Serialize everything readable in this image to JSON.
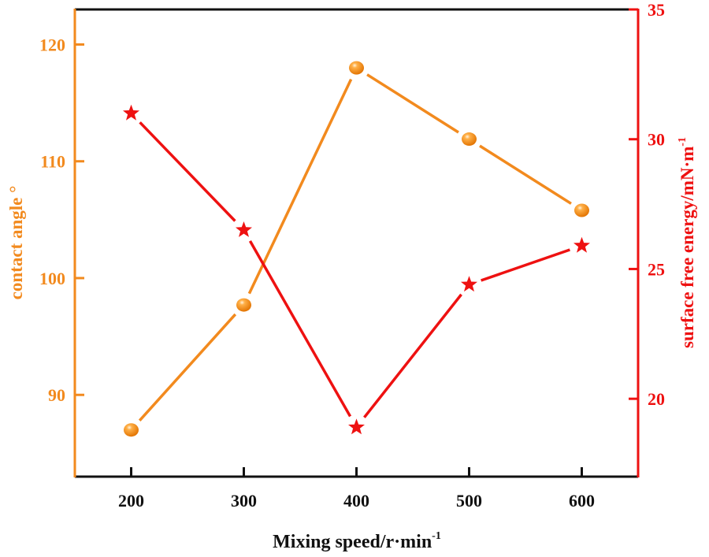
{
  "chart_data": {
    "type": "line",
    "xlabel": "Mixing speed/r·min",
    "xlabel_sup": "-1",
    "xlim": [
      150,
      650
    ],
    "x": [
      200,
      300,
      400,
      500,
      600
    ],
    "x_ticks": [
      "200",
      "300",
      "400",
      "500",
      "600"
    ],
    "y_left": {
      "label": "contact angle °",
      "lim": [
        83,
        123
      ],
      "ticks": [
        "90",
        "100",
        "110",
        "120"
      ],
      "color": "#F28A1E"
    },
    "y_right": {
      "label": "surface free energy/mN·m",
      "label_sup": "-1",
      "lim": [
        17,
        35
      ],
      "ticks": [
        "20",
        "25",
        "30",
        "35"
      ],
      "color": "#EE1111"
    },
    "series": [
      {
        "axis": "left",
        "marker": "sphere",
        "color": "#F28A1E",
        "values": [
          87.0,
          97.7,
          118.0,
          111.9,
          105.8
        ]
      },
      {
        "axis": "right",
        "marker": "star",
        "color": "#EE1111",
        "values": [
          31.0,
          26.5,
          18.9,
          24.4,
          25.9
        ]
      }
    ],
    "grid": false,
    "legend": "none"
  }
}
